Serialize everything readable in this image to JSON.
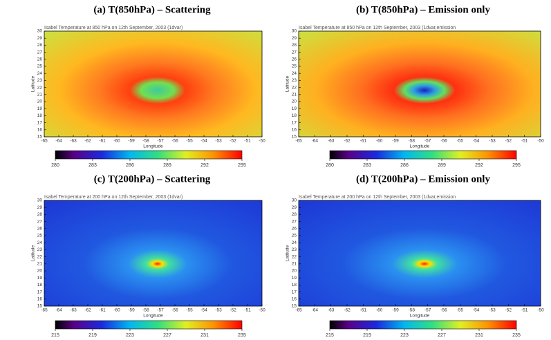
{
  "chart_data": [
    {
      "type": "heatmap",
      "panel_title": "(a) T(850hPa) – Scattering",
      "title": "Isabel Temperature at 850 hPa on 12th September, 2003 (1dvar)",
      "x_label": "Longitude",
      "y_label": "Latitude",
      "xlim": [
        -65,
        -50
      ],
      "xticks": [
        -65,
        -64,
        -63,
        -62,
        -61,
        -60,
        -59,
        -58,
        -57,
        -56,
        -55,
        -54,
        -53,
        -52,
        -51,
        -50
      ],
      "ylim": [
        15,
        30
      ],
      "yticks": [
        15,
        16,
        17,
        18,
        19,
        20,
        21,
        22,
        23,
        24,
        25,
        26,
        27,
        28,
        29,
        30
      ],
      "colorbar_lim": [
        280,
        295
      ],
      "colorbar_ticks": [
        280,
        283,
        286,
        289,
        292,
        295
      ]
    },
    {
      "type": "heatmap",
      "panel_title": "(b) T(850hPa) – Emission only",
      "title": "Isabel Temperature at 850 hPa on 12th September, 2003 (1dvar,emission",
      "x_label": "Longitude",
      "y_label": "Latitude",
      "xlim": [
        -65,
        -50
      ],
      "xticks": [
        -65,
        -64,
        -63,
        -62,
        -61,
        -60,
        -59,
        -58,
        -57,
        -56,
        -55,
        -54,
        -53,
        -52,
        -51,
        -50
      ],
      "ylim": [
        15,
        30
      ],
      "yticks": [
        15,
        16,
        17,
        18,
        19,
        20,
        21,
        22,
        23,
        24,
        25,
        26,
        27,
        28,
        29,
        30
      ],
      "colorbar_lim": [
        280,
        295
      ],
      "colorbar_ticks": [
        280,
        283,
        286,
        289,
        292,
        295
      ]
    },
    {
      "type": "heatmap",
      "panel_title": "(c) T(200hPa) – Scattering",
      "title": "Isabel Temperature at 200 hPa on 12th September, 2003 (1dvar)",
      "x_label": "Longitude",
      "y_label": "Latitude",
      "xlim": [
        -65,
        -50
      ],
      "xticks": [
        -65,
        -64,
        -63,
        -62,
        -61,
        -60,
        -59,
        -58,
        -57,
        -56,
        -55,
        -54,
        -53,
        -52,
        -51,
        -50
      ],
      "ylim": [
        15,
        30
      ],
      "yticks": [
        15,
        16,
        17,
        18,
        19,
        20,
        21,
        22,
        23,
        24,
        25,
        26,
        27,
        28,
        29,
        30
      ],
      "colorbar_lim": [
        215,
        235
      ],
      "colorbar_ticks": [
        215,
        219,
        223,
        227,
        231,
        235
      ]
    },
    {
      "type": "heatmap",
      "panel_title": "(d) T(200hPa) – Emission only",
      "title": "Isabel Temperature at 200 hPa on 12th September, 2003 (1dvar,emission",
      "x_label": "Longitude",
      "y_label": "Latitude",
      "xlim": [
        -65,
        -50
      ],
      "xticks": [
        -65,
        -64,
        -63,
        -62,
        -61,
        -60,
        -59,
        -58,
        -57,
        -56,
        -55,
        -54,
        -53,
        -52,
        -51,
        -50
      ],
      "ylim": [
        15,
        30
      ],
      "yticks": [
        15,
        16,
        17,
        18,
        19,
        20,
        21,
        22,
        23,
        24,
        25,
        26,
        27,
        28,
        29,
        30
      ],
      "colorbar_lim": [
        215,
        235
      ],
      "colorbar_ticks": [
        215,
        219,
        223,
        227,
        231,
        235
      ]
    }
  ]
}
